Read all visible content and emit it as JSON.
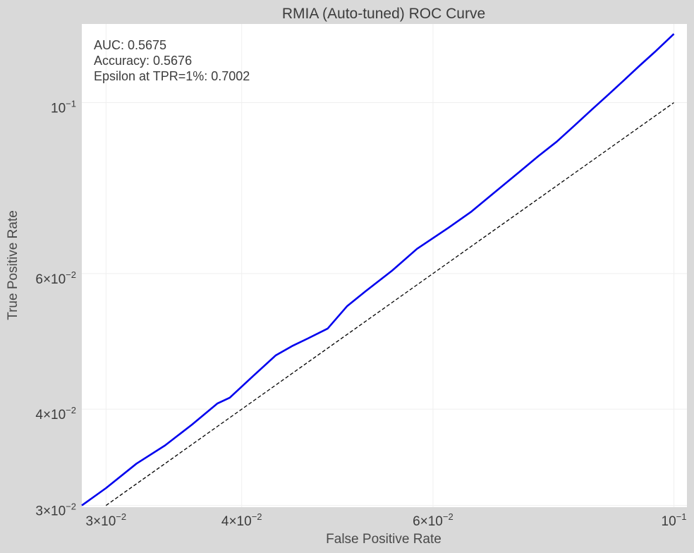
{
  "chart_data": {
    "type": "line",
    "title": "RMIA (Auto-tuned) ROC Curve",
    "xlabel": "False Positive Rate",
    "ylabel": "True Positive Rate",
    "xscale": "log",
    "yscale": "log",
    "xlim": [
      0.0285,
      0.1028
    ],
    "ylim": [
      0.02985,
      0.1265
    ],
    "x_ticks": [
      {
        "value": 0.03,
        "mantissa": "3",
        "exponent": "−2"
      },
      {
        "value": 0.04,
        "mantissa": "4",
        "exponent": "−2"
      },
      {
        "value": 0.06,
        "mantissa": "6",
        "exponent": "−2"
      },
      {
        "value": 0.1,
        "mantissa": "",
        "exponent": "−1"
      }
    ],
    "y_ticks": [
      {
        "value": 0.03,
        "mantissa": "3",
        "exponent": "−2"
      },
      {
        "value": 0.04,
        "mantissa": "4",
        "exponent": "−2"
      },
      {
        "value": 0.06,
        "mantissa": "6",
        "exponent": "−2"
      },
      {
        "value": 0.1,
        "mantissa": "",
        "exponent": "−1"
      }
    ],
    "grid": true,
    "annotations": [
      "AUC: 0.5675",
      "Accuracy: 0.5676",
      "Epsilon at TPR=1%: 0.7002"
    ],
    "series": [
      {
        "color": "#0000ee",
        "style": "solid",
        "x": [
          0.0285,
          0.03,
          0.032,
          0.034,
          0.036,
          0.038,
          0.039,
          0.041,
          0.043,
          0.0445,
          0.046,
          0.048,
          0.05,
          0.052,
          0.055,
          0.058,
          0.062,
          0.065,
          0.068,
          0.07,
          0.072,
          0.075,
          0.078,
          0.081,
          0.084,
          0.087,
          0.09,
          0.093,
          0.096,
          0.1
        ],
        "y": [
          0.03,
          0.0316,
          0.034,
          0.0359,
          0.0382,
          0.0407,
          0.0414,
          0.0442,
          0.047,
          0.0483,
          0.0494,
          0.0509,
          0.0544,
          0.0569,
          0.0605,
          0.0646,
          0.0688,
          0.0721,
          0.076,
          0.0786,
          0.0812,
          0.0852,
          0.089,
          0.0934,
          0.0979,
          0.1024,
          0.107,
          0.1117,
          0.1163,
          0.1228
        ]
      },
      {
        "color": "#000000",
        "style": "dashed",
        "x": [
          0.03,
          0.1
        ],
        "y": [
          0.03,
          0.1
        ]
      }
    ]
  }
}
